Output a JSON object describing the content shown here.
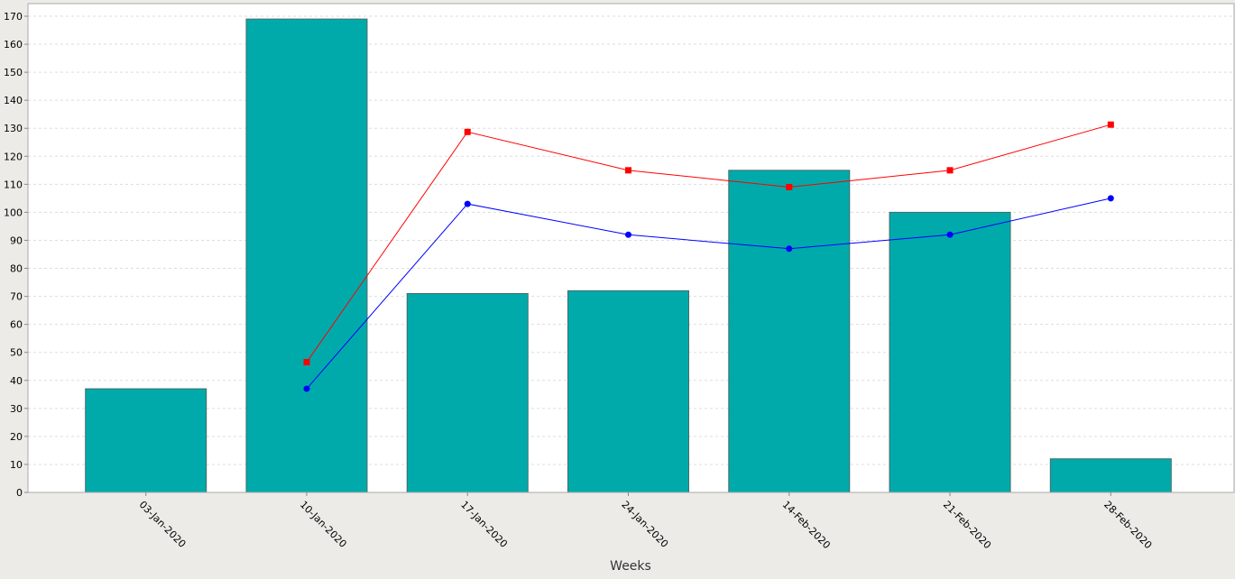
{
  "chart_data": {
    "type": "bar",
    "title": "",
    "xlabel": "Weeks",
    "ylabel": "",
    "ylim": [
      0,
      170
    ],
    "yticks": [
      0,
      10,
      20,
      30,
      40,
      50,
      60,
      70,
      80,
      90,
      100,
      110,
      120,
      130,
      140,
      150,
      160,
      170
    ],
    "grid": true,
    "legend": "none",
    "categories": [
      "03-Jan-2020",
      "10-Jan-2020",
      "17-Jan-2020",
      "24-Jan-2020",
      "14-Feb-2020",
      "21-Feb-2020",
      "28-Feb-2020"
    ],
    "series": [
      {
        "type": "bar",
        "color": "#00aaaa",
        "values": [
          37,
          169,
          71,
          72,
          115,
          100,
          12
        ]
      },
      {
        "type": "line",
        "color": "#ff0000",
        "marker": "square",
        "values": [
          null,
          46.5,
          128.7,
          115,
          109,
          115,
          131.3
        ]
      },
      {
        "type": "line",
        "color": "#0000ff",
        "marker": "circle",
        "values": [
          null,
          37,
          103,
          92,
          87,
          92,
          105
        ]
      }
    ]
  }
}
